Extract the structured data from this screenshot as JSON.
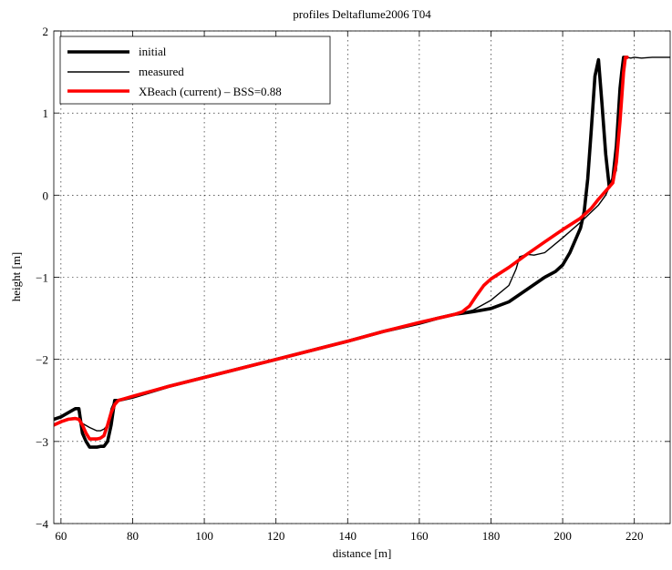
{
  "chart_data": {
    "type": "line",
    "title": "profiles Deltaflume2006 T04",
    "xlabel": "distance [m]",
    "ylabel": "height [m]",
    "xlim": [
      58,
      230
    ],
    "ylim": [
      -4,
      2
    ],
    "xticks": [
      60,
      80,
      100,
      120,
      140,
      160,
      180,
      200,
      220
    ],
    "yticks": [
      -4,
      -3,
      -2,
      -1,
      0,
      1,
      2
    ],
    "xtick_labels": [
      "60",
      "80",
      "100",
      "120",
      "140",
      "160",
      "180",
      "200",
      "220"
    ],
    "ytick_labels": [
      "−4",
      "−3",
      "−2",
      "−1",
      "0",
      "1",
      "2"
    ],
    "grid": true,
    "legend_position": "top-left",
    "series": [
      {
        "name": "initial",
        "color": "#000000",
        "style": "thick",
        "x": [
          58,
          60,
          62,
          64,
          65,
          66,
          67,
          68,
          69,
          70,
          71,
          72,
          73,
          74,
          75,
          76,
          80,
          90,
          100,
          110,
          120,
          130,
          140,
          150,
          160,
          165,
          170,
          175,
          180,
          185,
          190,
          195,
          198,
          200,
          202,
          204,
          205,
          206,
          207,
          208,
          209,
          210,
          211,
          212,
          213,
          214,
          215,
          216,
          216.5,
          217,
          218
        ],
        "y": [
          -2.73,
          -2.7,
          -2.65,
          -2.6,
          -2.6,
          -2.9,
          -3.0,
          -3.07,
          -3.07,
          -3.07,
          -3.06,
          -3.06,
          -3.0,
          -2.8,
          -2.5,
          -2.5,
          -2.46,
          -2.33,
          -2.22,
          -2.11,
          -2.0,
          -1.89,
          -1.78,
          -1.66,
          -1.56,
          -1.5,
          -1.45,
          -1.42,
          -1.38,
          -1.3,
          -1.15,
          -1.0,
          -0.93,
          -0.85,
          -0.7,
          -0.5,
          -0.4,
          -0.2,
          0.2,
          0.8,
          1.45,
          1.65,
          1.1,
          0.5,
          0.1,
          0.2,
          0.6,
          1.3,
          1.5,
          1.68,
          1.68
        ]
      },
      {
        "name": "measured",
        "color": "#000000",
        "style": "thin",
        "x": [
          58,
          60,
          62,
          64,
          65,
          66,
          68,
          70,
          71,
          72,
          73,
          74,
          75,
          76,
          80,
          90,
          100,
          110,
          120,
          130,
          140,
          150,
          160,
          165,
          170,
          175,
          180,
          185,
          187,
          188,
          190,
          192,
          195,
          200,
          205,
          210,
          212,
          213,
          214,
          215,
          216,
          216.5,
          217,
          218,
          219,
          220,
          222,
          225,
          230
        ],
        "y": [
          -2.8,
          -2.75,
          -2.72,
          -2.71,
          -2.72,
          -2.78,
          -2.83,
          -2.87,
          -2.87,
          -2.85,
          -2.8,
          -2.6,
          -2.5,
          -2.5,
          -2.45,
          -2.32,
          -2.21,
          -2.11,
          -2.0,
          -1.89,
          -1.78,
          -1.66,
          -1.55,
          -1.5,
          -1.45,
          -1.4,
          -1.28,
          -1.1,
          -0.9,
          -0.75,
          -0.72,
          -0.73,
          -0.7,
          -0.52,
          -0.33,
          -0.12,
          0.0,
          0.1,
          0.2,
          0.3,
          1.0,
          1.45,
          1.68,
          1.68,
          1.67,
          1.68,
          1.67,
          1.68,
          1.68
        ]
      },
      {
        "name": "XBeach (current) – BSS=0.88",
        "color": "#ff0000",
        "style": "thick",
        "x": [
          58,
          60,
          62,
          64,
          65,
          66,
          67,
          68,
          70,
          71,
          72,
          73,
          74,
          75,
          76,
          80,
          90,
          100,
          110,
          120,
          130,
          140,
          150,
          160,
          165,
          170,
          172,
          174,
          176,
          178,
          180,
          185,
          190,
          195,
          200,
          205,
          208,
          210,
          212,
          214,
          215,
          216,
          217,
          217.5,
          218
        ],
        "y": [
          -2.8,
          -2.76,
          -2.73,
          -2.72,
          -2.73,
          -2.8,
          -2.9,
          -2.97,
          -2.97,
          -2.96,
          -2.93,
          -2.8,
          -2.65,
          -2.55,
          -2.5,
          -2.45,
          -2.33,
          -2.22,
          -2.11,
          -2.0,
          -1.89,
          -1.78,
          -1.66,
          -1.55,
          -1.5,
          -1.45,
          -1.42,
          -1.35,
          -1.22,
          -1.1,
          -1.02,
          -0.88,
          -0.72,
          -0.57,
          -0.42,
          -0.28,
          -0.16,
          -0.05,
          0.05,
          0.15,
          0.4,
          0.9,
          1.5,
          1.68,
          1.68
        ]
      }
    ]
  }
}
